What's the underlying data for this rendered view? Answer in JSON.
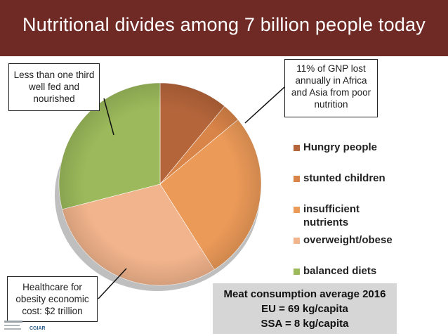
{
  "header": {
    "title": "Nutritional divides among 7 billion people today"
  },
  "chart_data": {
    "type": "pie",
    "title": "Nutritional divides among 7 billion people today",
    "categories": [
      "Hungry people",
      "stunted children",
      "insufficient nutrients",
      "overweight/obese",
      "balanced diets"
    ],
    "values": [
      11,
      3,
      27,
      30,
      29
    ],
    "colors": [
      "#b5653a",
      "#d98448",
      "#ec9a58",
      "#f2b48c",
      "#9cba5b"
    ],
    "legend_position": "right"
  },
  "legend": {
    "items": [
      {
        "label": "Hungry people",
        "color": "#b5653a"
      },
      {
        "label": "stunted children",
        "color": "#d98448"
      },
      {
        "label": "insufficient nutrients",
        "color": "#ec9a58"
      },
      {
        "label": "overweight/obese",
        "color": "#f2b48c"
      },
      {
        "label": "balanced diets",
        "color": "#9cba5b"
      }
    ]
  },
  "callouts": {
    "well_fed": "Less than one third well fed and nourished",
    "gnp_loss": "11% of GNP lost annually  in Africa and Asia from poor nutrition",
    "healthcare": "Healthcare for obesity economic cost: $2 trillion"
  },
  "meat_box": {
    "line1": "Meat consumption average 2016",
    "line2": "EU = 69 kg/capita",
    "line3": "SSA = 8 kg/capita"
  },
  "logo": {
    "text": "CGIAR"
  }
}
